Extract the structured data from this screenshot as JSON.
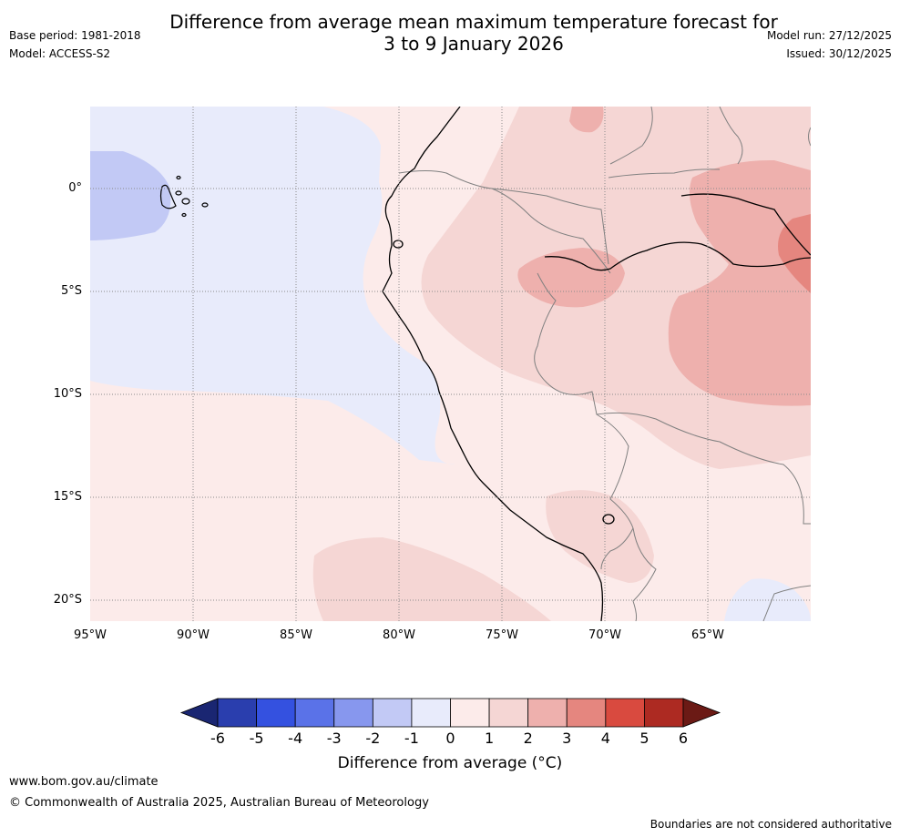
{
  "title_line1": "Difference from average mean maximum temperature forecast for",
  "title_line2": "3 to 9 January 2026",
  "base_period": "Base period: 1981-2018",
  "model": "Model: ACCESS-S2",
  "model_run": "Model run: 27/12/2025",
  "issued": "Issued: 30/12/2025",
  "lat_labels": [
    "0°",
    "5°S",
    "10°S",
    "15°S",
    "20°S"
  ],
  "lon_labels": [
    "95°W",
    "90°W",
    "85°W",
    "80°W",
    "75°W",
    "70°W",
    "65°W"
  ],
  "colorbar": {
    "ticks": [
      "-6",
      "-5",
      "-4",
      "-3",
      "-2",
      "-1",
      "0",
      "1",
      "2",
      "3",
      "4",
      "5",
      "6"
    ],
    "colors": [
      "#1a2672",
      "#2a3eae",
      "#3451e0",
      "#5a72e8",
      "#8797ee",
      "#c2c9f5",
      "#e8ebfb",
      "#fcebea",
      "#f5d6d4",
      "#eeb0ad",
      "#e5867f",
      "#d94a3f",
      "#ad2a22",
      "#6b1a15"
    ],
    "label": "Difference from average (°C)"
  },
  "footer_url": "www.bom.gov.au/climate",
  "footer_copyright": "© Commonwealth of Australia 2025, Australian Bureau of Meteorology",
  "footer_note": "Boundaries are not considered authoritative"
}
